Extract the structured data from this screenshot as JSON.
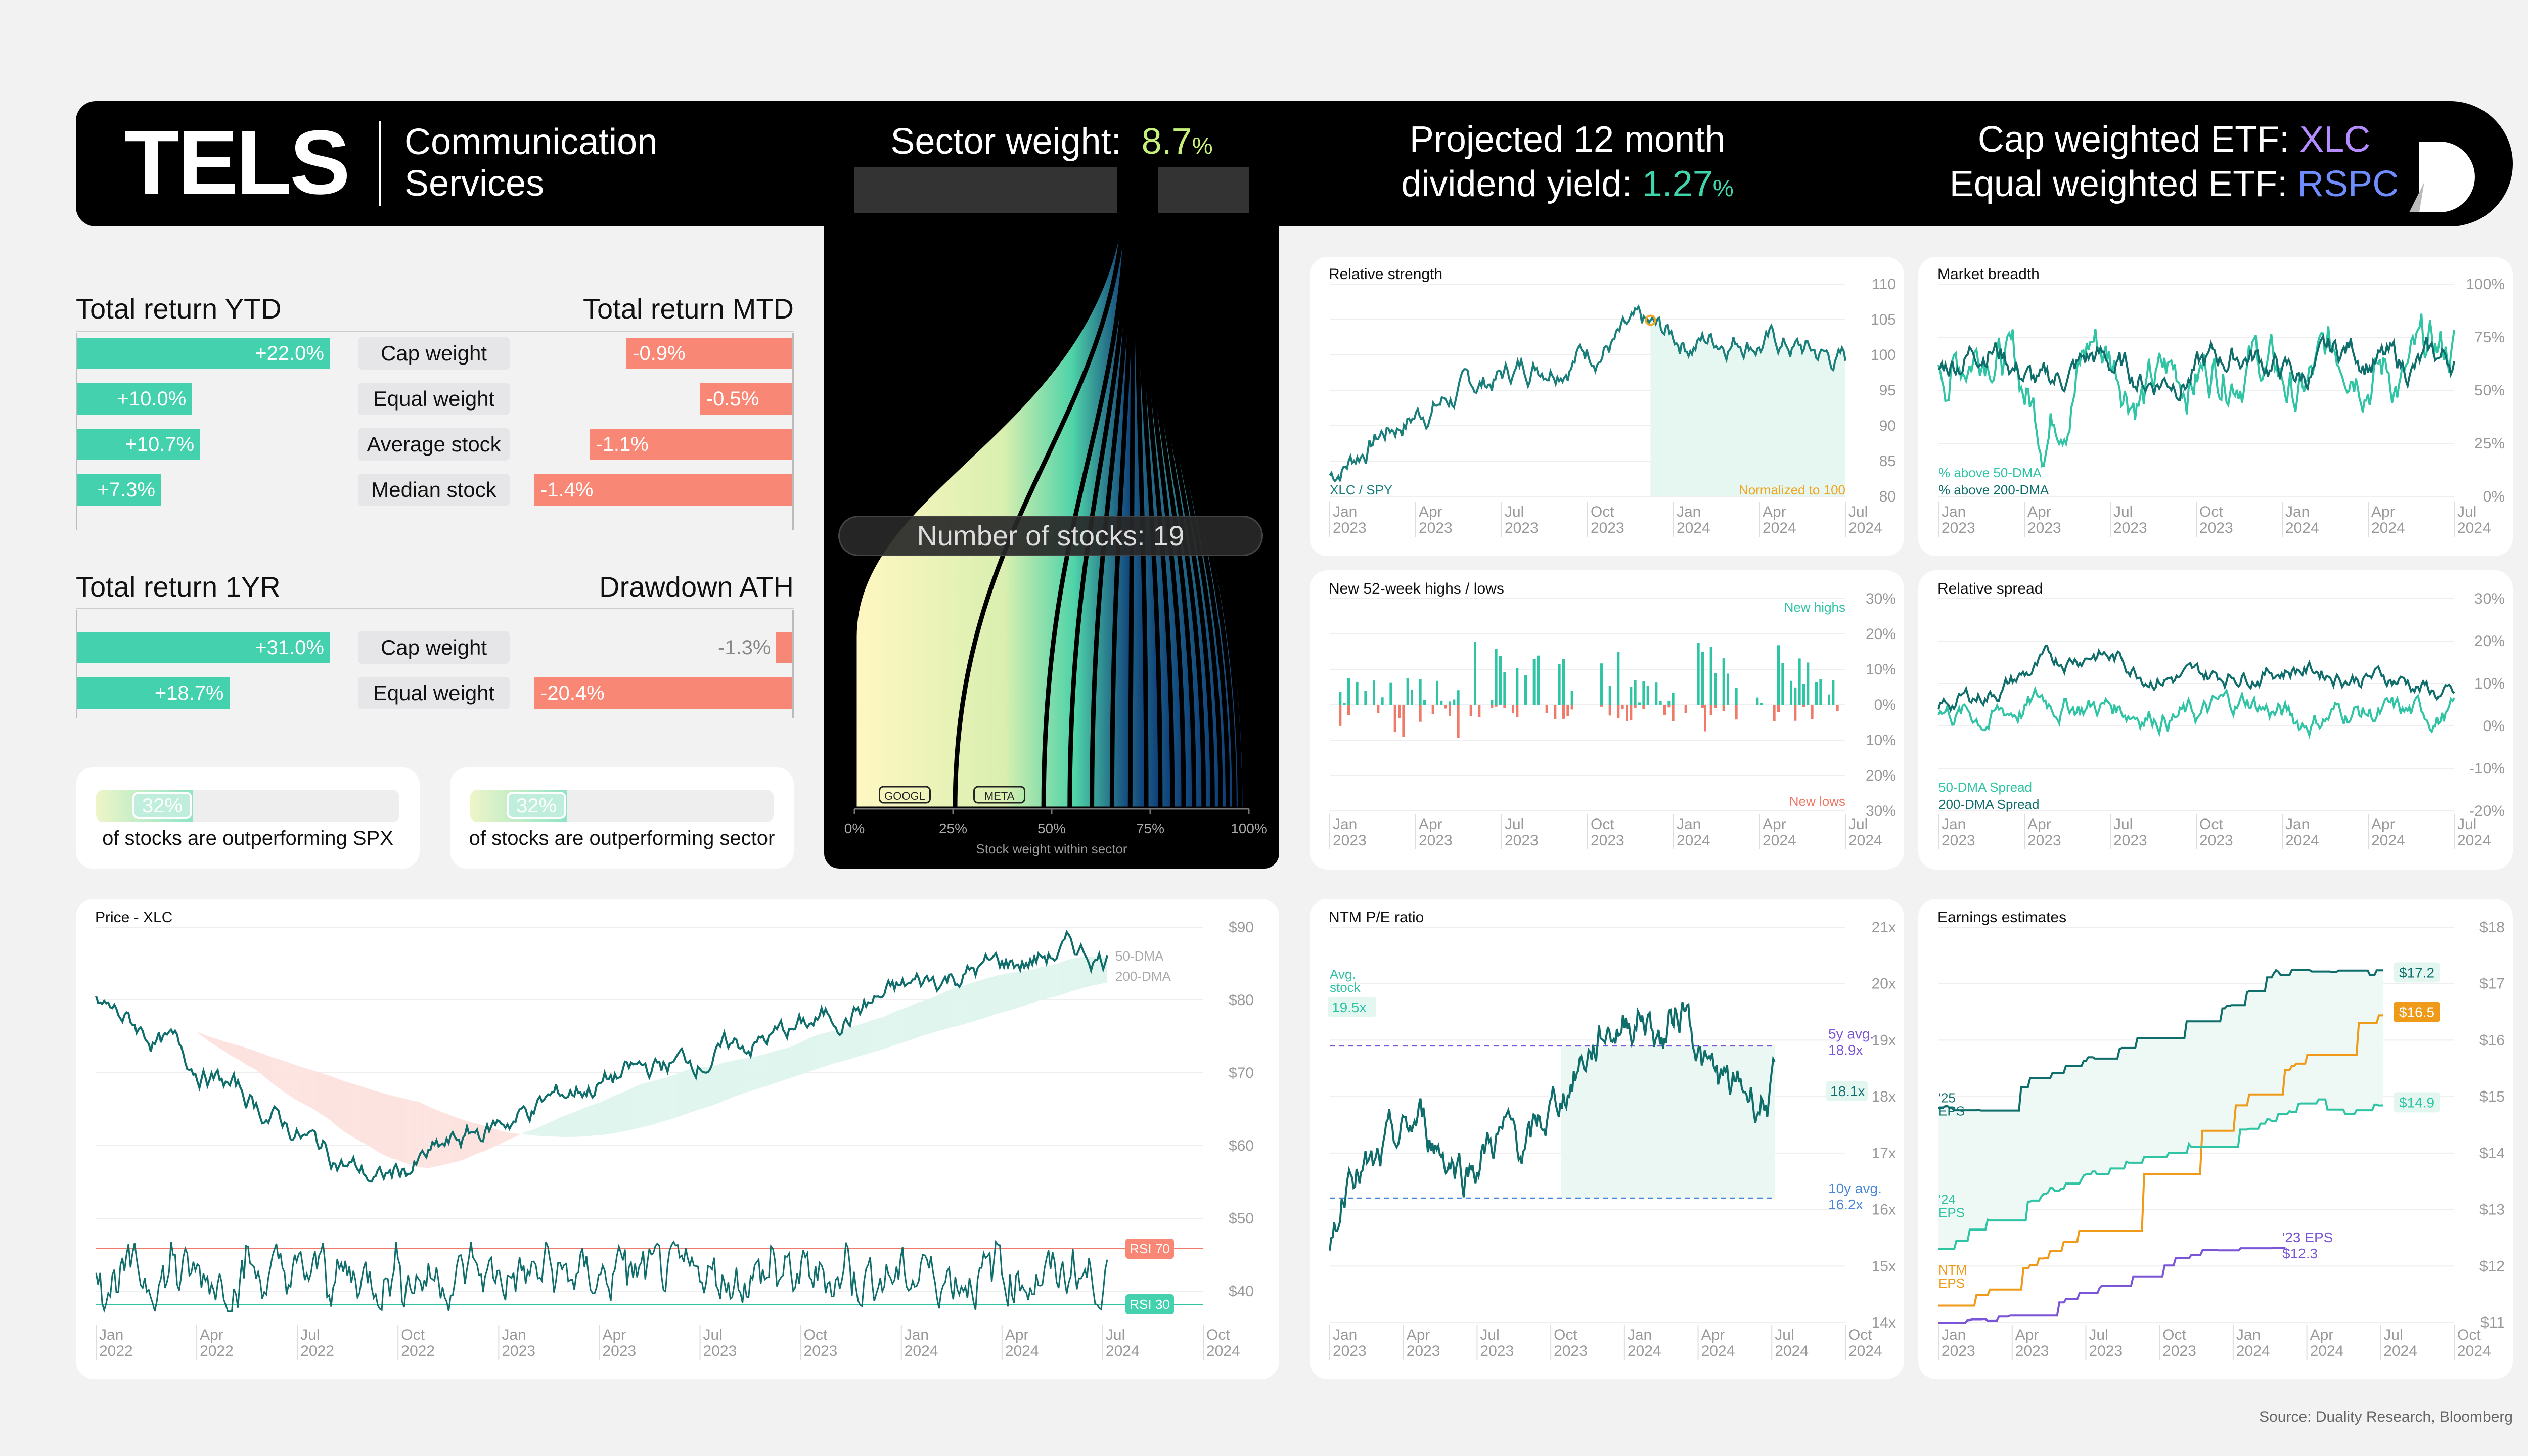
{
  "header": {
    "ticker": "TELS",
    "sector_line1": "Communication",
    "sector_line2": "Services",
    "weight_label": "Sector weight:",
    "weight_value": "8.7",
    "weight_unit": "%",
    "yield_line1": "Projected 12 month",
    "yield_line2": "dividend yield:",
    "yield_value": "1.27",
    "yield_unit": "%",
    "cap_etf_label": "Cap weighted ETF:",
    "cap_etf_value": "XLC",
    "equal_etf_label": "Equal weighted ETF:",
    "equal_etf_value": "RSPC",
    "logo_name": "duality-logo",
    "colors": {
      "weight": "#c7f07b",
      "yield": "#3fd6ae",
      "xlc": "#b48cff",
      "rspc": "#6f8dff"
    }
  },
  "returns": {
    "ytd_title": "Total return YTD",
    "mtd_title": "Total return MTD",
    "yr_title": "Total return 1YR",
    "dd_title": "Drawdown ATH",
    "categories": [
      "Cap weight",
      "Equal weight",
      "Average stock",
      "Median stock"
    ],
    "ytd": [
      22.0,
      10.0,
      10.7,
      7.3
    ],
    "ytd_labels": [
      "+22.0%",
      "+10.0%",
      "+10.7%",
      "+7.3%"
    ],
    "mtd": [
      -0.9,
      -0.5,
      -1.1,
      -1.4
    ],
    "mtd_labels": [
      "-0.9%",
      "-0.5%",
      "-1.1%",
      "-1.4%"
    ],
    "yr_categories": [
      "Cap weight",
      "Equal weight"
    ],
    "yr": [
      31.0,
      18.7
    ],
    "yr_labels": [
      "+31.0%",
      "+18.7%"
    ],
    "dd": [
      -1.3,
      -20.4
    ],
    "dd_labels": [
      "-1.3%",
      "-20.4%"
    ]
  },
  "outperform": [
    {
      "value": 32,
      "value_label": "32%",
      "text": "of stocks are outperforming SPX"
    },
    {
      "value": 32,
      "value_label": "32%",
      "text": "of stocks are outperforming sector"
    }
  ],
  "stocks_panel": {
    "count_label": "Number of stocks: 19",
    "labels": [
      "GOOGL",
      "META"
    ],
    "x_ticks": [
      "0%",
      "25%",
      "50%",
      "75%",
      "100%"
    ],
    "x_title": "Stock weight within sector",
    "weights": [
      0.25,
      0.22,
      0.065,
      0.055,
      0.05,
      0.045,
      0.04,
      0.035,
      0.03,
      0.028,
      0.026,
      0.024,
      0.022,
      0.02,
      0.018,
      0.016,
      0.014,
      0.012,
      0.01
    ]
  },
  "chart_data": [
    {
      "name": "relative-strength",
      "type": "line",
      "title": "Relative strength",
      "series_label": "XLC / SPY",
      "note": "Normalized to 100",
      "y_ticks": [
        "110",
        "105",
        "100",
        "95",
        "90",
        "85",
        "80"
      ],
      "ylim": [
        80,
        110
      ],
      "x_ticks": [
        "Jan 2023",
        "Apr 2023",
        "Jul 2023",
        "Oct 2023",
        "Jan 2024",
        "Apr 2024",
        "Jul 2024"
      ],
      "colors": {
        "line": "#1a7f7a",
        "marker": "#f0a51e"
      },
      "keypoints": [
        [
          0,
          83
        ],
        [
          0.1,
          89
        ],
        [
          0.2,
          93
        ],
        [
          0.3,
          96
        ],
        [
          0.4,
          99
        ],
        [
          0.5,
          101
        ],
        [
          0.6,
          103
        ],
        [
          0.7,
          102
        ],
        [
          0.8,
          103
        ],
        [
          0.9,
          101
        ],
        [
          1,
          99
        ]
      ]
    },
    {
      "name": "market-breadth",
      "type": "line",
      "title": "Market breadth",
      "series": [
        {
          "name": "% above 50-DMA",
          "color": "#2fc4a4"
        },
        {
          "name": "% above 200-DMA",
          "color": "#0f6e6b"
        }
      ],
      "y_ticks": [
        "100%",
        "75%",
        "50%",
        "25%",
        "0%"
      ],
      "ylim": [
        0,
        100
      ],
      "x_ticks": [
        "Jan 2023",
        "Apr 2023",
        "Jul 2023",
        "Oct 2023",
        "Jan 2024",
        "Apr 2024",
        "Jul 2024"
      ]
    },
    {
      "name": "new-highs-lows",
      "type": "bar",
      "title": "New 52-week highs / lows",
      "series": [
        {
          "name": "New highs",
          "color": "#2fc4a4"
        },
        {
          "name": "New lows",
          "color": "#f07a6a"
        }
      ],
      "y_ticks": [
        "30%",
        "20%",
        "10%",
        "0%",
        "10%",
        "20%",
        "30%"
      ],
      "ylim": [
        -30,
        30
      ],
      "x_ticks": [
        "Jan 2023",
        "Apr 2023",
        "Jul 2023",
        "Oct 2023",
        "Jan 2024",
        "Apr 2024",
        "Jul 2024"
      ]
    },
    {
      "name": "relative-spread",
      "type": "line",
      "title": "Relative spread",
      "series": [
        {
          "name": "50-DMA Spread",
          "color": "#2fc4a4"
        },
        {
          "name": "200-DMA Spread",
          "color": "#0f6e6b"
        }
      ],
      "y_ticks": [
        "30%",
        "20%",
        "10%",
        "0%",
        "-10%",
        "-20%"
      ],
      "ylim": [
        -20,
        30
      ],
      "x_ticks": [
        "Jan 2023",
        "Apr 2023",
        "Jul 2023",
        "Oct 2023",
        "Jan 2024",
        "Apr 2024",
        "Jul 2024"
      ]
    },
    {
      "name": "price-xlc",
      "type": "line",
      "title": "Price - XLC",
      "series": [
        {
          "name": "50-DMA",
          "color": "#2fc4a4"
        },
        {
          "name": "200-DMA",
          "color": "#f07a6a"
        }
      ],
      "y_ticks": [
        "$90",
        "$80",
        "$70",
        "$60",
        "$50",
        "$40"
      ],
      "ylim": [
        35,
        90
      ],
      "rsi_labels": [
        "RSI 70",
        "RSI 30"
      ],
      "x_ticks": [
        "Jan 2022",
        "Apr 2022",
        "Jul 2022",
        "Oct 2022",
        "Jan 2023",
        "Apr 2023",
        "Jul 2023",
        "Oct 2023",
        "Jan 2024",
        "Apr 2024",
        "Jul 2024",
        "Oct 2024"
      ],
      "keypoints": [
        [
          0,
          78
        ],
        [
          0.08,
          70
        ],
        [
          0.15,
          62
        ],
        [
          0.22,
          54
        ],
        [
          0.28,
          48
        ],
        [
          0.33,
          52
        ],
        [
          0.4,
          58
        ],
        [
          0.48,
          64
        ],
        [
          0.55,
          67
        ],
        [
          0.62,
          70
        ],
        [
          0.7,
          74
        ],
        [
          0.78,
          79
        ],
        [
          0.85,
          83
        ],
        [
          0.92,
          85
        ],
        [
          0.96,
          87
        ],
        [
          1,
          86
        ]
      ]
    },
    {
      "name": "ntm-pe",
      "type": "line",
      "title": "NTM P/E ratio",
      "avg_stock_label": "Avg. stock",
      "avg_stock_value": "19.5x",
      "avg5_label": "5y avg.",
      "avg5_value": "18.9x",
      "avg10_label": "10y avg.",
      "avg10_value": "16.2x",
      "current_value": "18.1x",
      "y_ticks": [
        "21x",
        "20x",
        "19x",
        "18x",
        "17x",
        "16x",
        "15x",
        "14x"
      ],
      "ylim": [
        14,
        21
      ],
      "avg5": 18.9,
      "avg10": 16.2,
      "x_ticks": [
        "Jan 2023",
        "Apr 2023",
        "Jul 2023",
        "Oct 2023",
        "Jan 2024",
        "Apr 2024",
        "Jul 2024",
        "Oct 2024"
      ],
      "keypoints": [
        [
          0,
          15.0
        ],
        [
          0.05,
          17.2
        ],
        [
          0.1,
          16.5
        ],
        [
          0.2,
          17.5
        ],
        [
          0.3,
          16.8
        ],
        [
          0.38,
          17.3
        ],
        [
          0.45,
          17.0
        ],
        [
          0.55,
          18.5
        ],
        [
          0.62,
          19.2
        ],
        [
          0.7,
          19.6
        ],
        [
          0.75,
          19.0
        ],
        [
          0.8,
          19.8
        ],
        [
          0.85,
          18.4
        ],
        [
          0.9,
          18.0
        ],
        [
          1,
          18.1
        ]
      ]
    },
    {
      "name": "earnings-estimates",
      "type": "line",
      "title": "Earnings estimates",
      "series": [
        {
          "name": "'25 EPS",
          "end_label": "$17.2",
          "color": "#0f6e6b",
          "end": 17.2
        },
        {
          "name": "NTM EPS",
          "end_label": "$16.5",
          "color": "#f09a1a",
          "end": 16.5
        },
        {
          "name": "'24 EPS",
          "end_label": "$14.9",
          "color": "#2fc4a4",
          "end": 14.9
        },
        {
          "name": "'23 EPS",
          "end_label": "$12.3",
          "color": "#7a55d8",
          "end": 12.3
        }
      ],
      "y_ticks": [
        "$18",
        "$17",
        "$16",
        "$15",
        "$14",
        "$13",
        "$12",
        "$11"
      ],
      "ylim": [
        11,
        18
      ],
      "x_ticks": [
        "Jan 2023",
        "Apr 2023",
        "Jul 2023",
        "Oct 2023",
        "Jan 2024",
        "Apr 2024",
        "Jul 2024",
        "Oct 2024"
      ]
    }
  ],
  "footer": {
    "source": "Source: Duality Research, Bloomberg"
  }
}
